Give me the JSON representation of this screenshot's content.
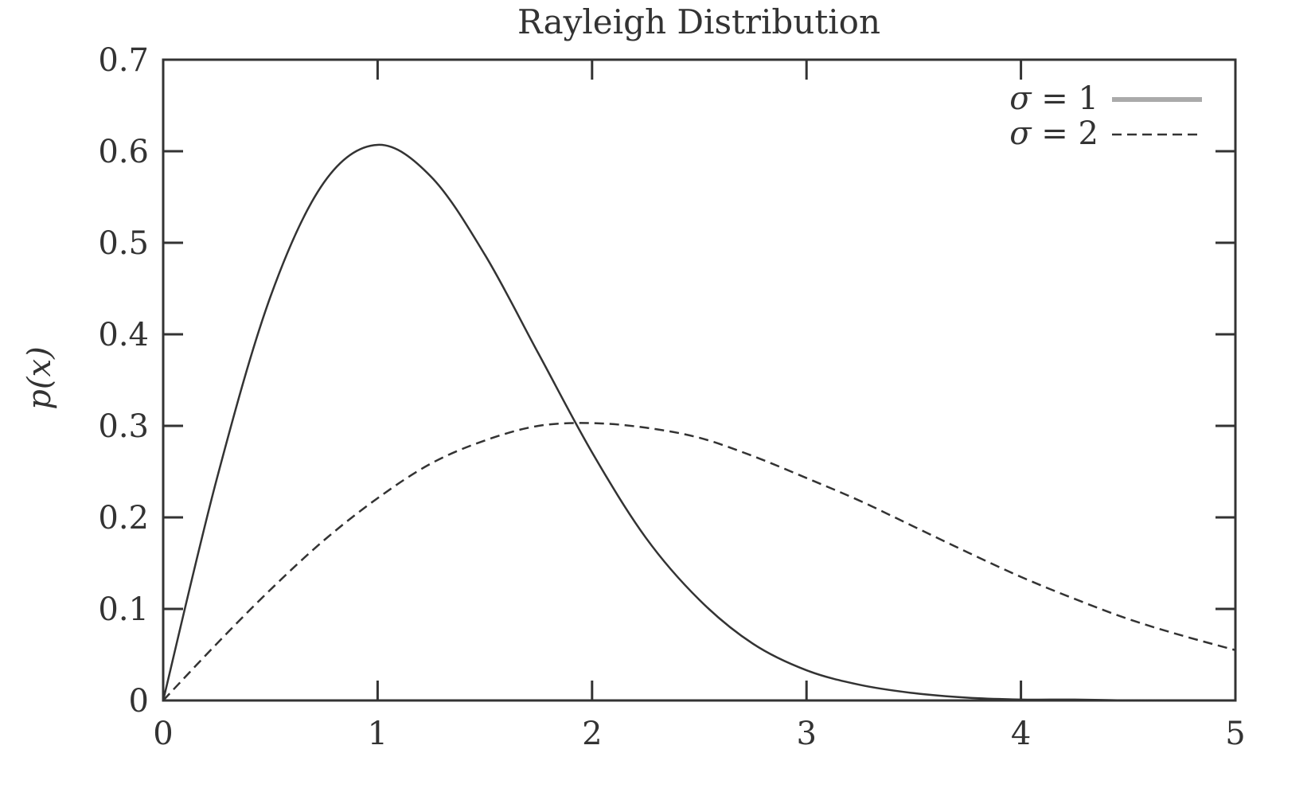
{
  "chart_data": {
    "type": "line",
    "title": "Rayleigh Distribution",
    "xlabel": "",
    "ylabel": "p(x)",
    "xlim": [
      0,
      5
    ],
    "ylim": [
      0,
      0.7
    ],
    "x_ticks": [
      "0",
      "1",
      "2",
      "3",
      "4",
      "5"
    ],
    "y_ticks": [
      "0",
      "0.1",
      "0.2",
      "0.3",
      "0.4",
      "0.5",
      "0.6",
      "0.7"
    ],
    "grid": false,
    "legend_position": "top-right",
    "series": [
      {
        "name": "σ = 1",
        "legend_symbol": "σ",
        "legend_value": "1",
        "style": "solid",
        "color": "#333333",
        "x": [
          0,
          0.25,
          0.5,
          0.75,
          1.0,
          1.25,
          1.5,
          1.75,
          2.0,
          2.25,
          2.5,
          2.75,
          3.0,
          3.25,
          3.5,
          3.75,
          4.0,
          4.25,
          4.5,
          4.75,
          5.0
        ],
        "y": [
          0,
          0.242,
          0.441,
          0.566,
          0.607,
          0.572,
          0.487,
          0.379,
          0.271,
          0.178,
          0.11,
          0.062,
          0.033,
          0.017,
          0.008,
          0.003,
          0.001,
          0.001,
          0.0,
          0.0,
          0.0
        ]
      },
      {
        "name": "σ = 2",
        "legend_symbol": "σ",
        "legend_value": "2",
        "style": "dashed",
        "color": "#333333",
        "x": [
          0,
          0.25,
          0.5,
          0.75,
          1.0,
          1.25,
          1.5,
          1.75,
          2.0,
          2.25,
          2.5,
          2.75,
          3.0,
          3.25,
          3.5,
          3.75,
          4.0,
          4.25,
          4.5,
          4.75,
          5.0
        ],
        "y": [
          0,
          0.062,
          0.121,
          0.175,
          0.221,
          0.259,
          0.284,
          0.3,
          0.303,
          0.298,
          0.287,
          0.267,
          0.243,
          0.218,
          0.19,
          0.162,
          0.135,
          0.111,
          0.089,
          0.071,
          0.055
        ]
      }
    ]
  }
}
